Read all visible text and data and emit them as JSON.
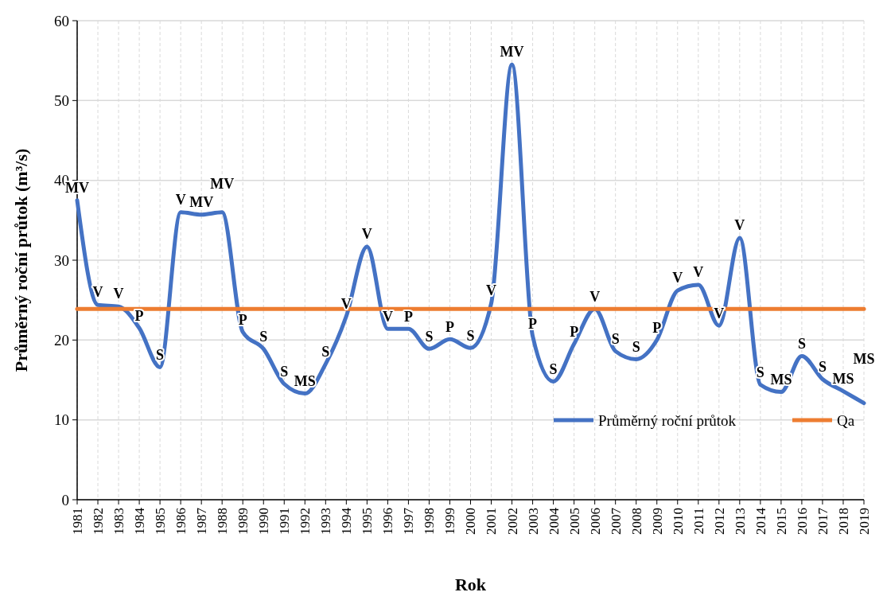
{
  "chart_data": {
    "type": "line",
    "xlabel": "Rok",
    "ylabel": "Průměrný roční průtok (m³/s)",
    "x": [
      1981,
      1982,
      1983,
      1984,
      1985,
      1986,
      1987,
      1988,
      1989,
      1990,
      1991,
      1992,
      1993,
      1994,
      1995,
      1996,
      1997,
      1998,
      1999,
      2000,
      2001,
      2002,
      2003,
      2004,
      2005,
      2006,
      2007,
      2008,
      2009,
      2010,
      2011,
      2012,
      2013,
      2014,
      2015,
      2016,
      2017,
      2018,
      2019
    ],
    "series": [
      {
        "name": "Průměrný roční průtok",
        "color": "#4472c4",
        "values": [
          37.5,
          24.4,
          24.2,
          21.5,
          16.6,
          36.0,
          35.7,
          36.0,
          21.0,
          18.9,
          14.5,
          13.3,
          17.0,
          23.0,
          31.7,
          21.4,
          21.4,
          18.9,
          20.1,
          19.0,
          24.6,
          54.5,
          20.5,
          14.8,
          19.5,
          23.9,
          18.6,
          17.6,
          20.0,
          26.2,
          26.9,
          21.8,
          32.8,
          14.4,
          13.5,
          18.0,
          15.1,
          13.6,
          12.1
        ]
      },
      {
        "name": "Qa",
        "color": "#ed7d31",
        "values": [
          23.9,
          23.9,
          23.9,
          23.9,
          23.9,
          23.9,
          23.9,
          23.9,
          23.9,
          23.9,
          23.9,
          23.9,
          23.9,
          23.9,
          23.9,
          23.9,
          23.9,
          23.9,
          23.9,
          23.9,
          23.9,
          23.9,
          23.9,
          23.9,
          23.9,
          23.9,
          23.9,
          23.9,
          23.9,
          23.9,
          23.9,
          23.9,
          23.9,
          23.9,
          23.9,
          23.9,
          23.9,
          23.9,
          23.9
        ]
      }
    ],
    "annotations": [
      {
        "text": "MV",
        "x": 1981,
        "y": 37.5
      },
      {
        "text": "V",
        "x": 1982,
        "y": 24.4
      },
      {
        "text": "V",
        "x": 1983,
        "y": 24.2
      },
      {
        "text": "P",
        "x": 1984,
        "y": 21.5
      },
      {
        "text": "S",
        "x": 1985,
        "y": 16.6
      },
      {
        "text": "V",
        "x": 1986,
        "y": 36.0
      },
      {
        "text": "MV",
        "x": 1987,
        "y": 35.7
      },
      {
        "text": "MV",
        "x": 1988,
        "y": 36.0
      },
      {
        "text": "P",
        "x": 1989,
        "y": 21.0
      },
      {
        "text": "S",
        "x": 1990,
        "y": 18.9
      },
      {
        "text": "S",
        "x": 1991,
        "y": 14.5
      },
      {
        "text": "MS",
        "x": 1992,
        "y": 13.3
      },
      {
        "text": "S",
        "x": 1993,
        "y": 17.0
      },
      {
        "text": "V",
        "x": 1994,
        "y": 23.0
      },
      {
        "text": "V",
        "x": 1995,
        "y": 31.7
      },
      {
        "text": "V",
        "x": 1996,
        "y": 21.4
      },
      {
        "text": "P",
        "x": 1997,
        "y": 21.4
      },
      {
        "text": "S",
        "x": 1998,
        "y": 18.9
      },
      {
        "text": "P",
        "x": 1999,
        "y": 20.1
      },
      {
        "text": "S",
        "x": 2000,
        "y": 19.0
      },
      {
        "text": "V",
        "x": 2001,
        "y": 24.6
      },
      {
        "text": "MV",
        "x": 2002,
        "y": 54.5
      },
      {
        "text": "P",
        "x": 2003,
        "y": 20.5
      },
      {
        "text": "S",
        "x": 2004,
        "y": 14.8
      },
      {
        "text": "P",
        "x": 2005,
        "y": 19.5
      },
      {
        "text": "V",
        "x": 2006,
        "y": 23.9
      },
      {
        "text": "S",
        "x": 2007,
        "y": 18.6
      },
      {
        "text": "S",
        "x": 2008,
        "y": 17.6
      },
      {
        "text": "P",
        "x": 2009,
        "y": 20.0
      },
      {
        "text": "V",
        "x": 2010,
        "y": 26.2
      },
      {
        "text": "V",
        "x": 2011,
        "y": 26.9
      },
      {
        "text": "V",
        "x": 2012,
        "y": 21.8
      },
      {
        "text": "V",
        "x": 2013,
        "y": 32.8
      },
      {
        "text": "S",
        "x": 2014,
        "y": 14.4
      },
      {
        "text": "MS",
        "x": 2015,
        "y": 13.5
      },
      {
        "text": "S",
        "x": 2016,
        "y": 18.0
      },
      {
        "text": "S",
        "x": 2017,
        "y": 15.1
      },
      {
        "text": "MS",
        "x": 2018,
        "y": 13.6
      },
      {
        "text": "MS",
        "x": 2019,
        "y": 12.1
      }
    ],
    "xlim": [
      1981,
      2019
    ],
    "xticks": [
      1981,
      1982,
      1983,
      1984,
      1985,
      1986,
      1987,
      1988,
      1989,
      1990,
      1991,
      1992,
      1993,
      1994,
      1995,
      1996,
      1997,
      1998,
      1999,
      2000,
      2001,
      2002,
      2003,
      2004,
      2005,
      2006,
      2007,
      2008,
      2009,
      2010,
      2011,
      2012,
      2013,
      2014,
      2015,
      2016,
      2017,
      2018,
      2019
    ],
    "ylim": [
      0,
      60
    ],
    "yticks": [
      0,
      10,
      20,
      30,
      40,
      50,
      60
    ],
    "grid": true,
    "legend": "bottom right",
    "marker": "none",
    "line_style": "solid"
  }
}
